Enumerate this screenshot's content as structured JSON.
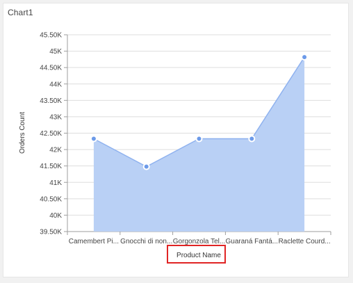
{
  "title": "Chart1",
  "chart_data": {
    "type": "area",
    "title": "Chart1",
    "xlabel": "Product Name",
    "ylabel": "Orders Count",
    "categories": [
      "Camembert Pi...",
      "Gnocchi di non...",
      "Gorgonzola Tel...",
      "Guaraná Fantá...",
      "Raclette Courd..."
    ],
    "values": [
      42330,
      41480,
      42330,
      42330,
      44820
    ],
    "ylim": [
      39500,
      45500
    ],
    "yticks": [
      39500,
      40000,
      40500,
      41000,
      41500,
      42000,
      42500,
      43000,
      43500,
      44000,
      44500,
      45000,
      45500
    ],
    "ytick_labels": [
      "39.50K",
      "40K",
      "40.50K",
      "41K",
      "41.50K",
      "42K",
      "42.50K",
      "43K",
      "43.50K",
      "44K",
      "44.50K",
      "45K",
      "45.50K"
    ],
    "grid": true,
    "colors": {
      "fill": "#b9d0f5",
      "line": "#8fb2ef",
      "marker": "#6c9ae9"
    },
    "highlight": "xlabel"
  }
}
